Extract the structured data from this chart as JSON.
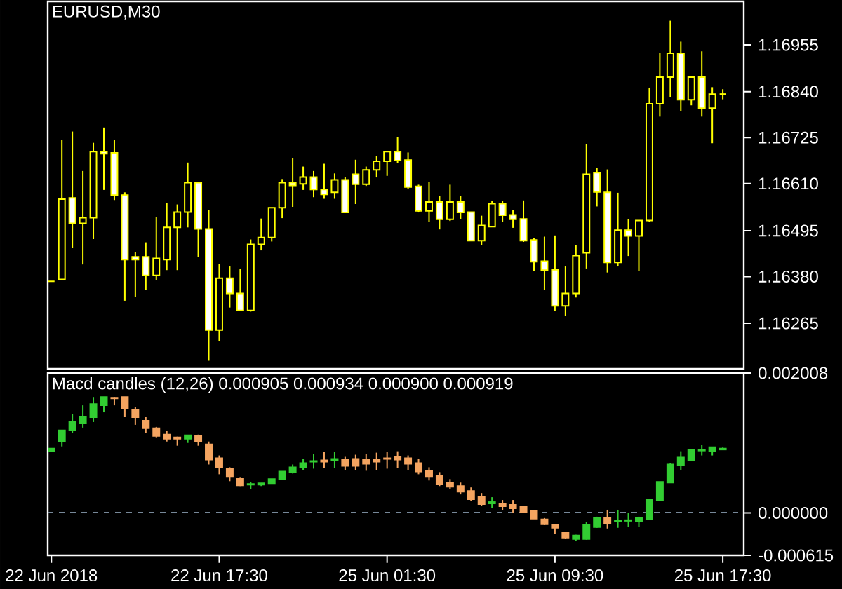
{
  "chart_data": [
    {
      "type": "candlestick",
      "title": "EURUSD,M30",
      "color": "#ffff00",
      "categories": [
        null,
        null,
        null,
        null,
        null,
        null,
        null,
        null,
        null,
        null,
        null,
        null,
        null,
        null,
        null,
        null,
        null,
        null,
        null,
        null,
        null,
        null,
        null,
        null,
        null,
        null,
        null,
        null,
        null,
        null,
        null,
        null,
        null,
        null,
        null,
        null,
        null,
        null,
        null,
        null,
        null,
        null,
        null,
        null,
        null,
        null,
        null,
        null,
        null,
        null,
        null,
        null,
        null,
        null,
        null,
        null,
        null,
        null,
        null,
        null,
        null,
        null,
        null,
        null,
        null
      ],
      "ylim": [
        1.16151,
        1.17064
      ],
      "yticks": [
        {
          "value": 1.16265,
          "label": "1.16265"
        },
        {
          "value": 1.1638,
          "label": "1.16380"
        },
        {
          "value": 1.16495,
          "label": "1.16495"
        },
        {
          "value": 1.1661,
          "label": "1.16610"
        },
        {
          "value": 1.16725,
          "label": "1.16725"
        },
        {
          "value": 1.1684,
          "label": "1.16840"
        },
        {
          "value": 1.16955,
          "label": "1.16955"
        }
      ],
      "ohlc": [
        [
          1.16368,
          1.16368,
          1.16368,
          1.16368
        ],
        [
          1.16373,
          1.16719,
          1.16373,
          1.16572
        ],
        [
          1.16575,
          1.1674,
          1.16452,
          1.16512
        ],
        [
          1.16512,
          1.16642,
          1.1641,
          1.16526
        ],
        [
          1.16526,
          1.16712,
          1.16473,
          1.1669
        ],
        [
          1.1669,
          1.1675,
          1.16595,
          1.16685
        ],
        [
          1.16687,
          1.16719,
          1.1657,
          1.16582
        ],
        [
          1.16582,
          1.16589,
          1.1632,
          1.16422
        ],
        [
          1.16429,
          1.1644,
          1.1633,
          1.16422
        ],
        [
          1.16429,
          1.16465,
          1.16347,
          1.16383
        ],
        [
          1.16383,
          1.16527,
          1.16372,
          1.16425
        ],
        [
          1.16422,
          1.16562,
          1.16396,
          1.16502
        ],
        [
          1.16502,
          1.16559,
          1.16396,
          1.1654
        ],
        [
          1.1654,
          1.16663,
          1.16502,
          1.16613
        ],
        [
          1.16613,
          1.16613,
          1.16428,
          1.16498
        ],
        [
          1.16498,
          1.16545,
          1.16171,
          1.16247
        ],
        [
          1.16247,
          1.16412,
          1.1622,
          1.16376
        ],
        [
          1.16376,
          1.16405,
          1.16303,
          1.16338
        ],
        [
          1.16338,
          1.16399,
          1.16296,
          1.16296
        ],
        [
          1.16296,
          1.16472,
          1.16293,
          1.1646
        ],
        [
          1.1646,
          1.16524,
          1.16445,
          1.16477
        ],
        [
          1.16477,
          1.16551,
          1.16467,
          1.16551
        ],
        [
          1.16551,
          1.16622,
          1.16525,
          1.16613
        ],
        [
          1.16613,
          1.16674,
          1.16553,
          1.16606
        ],
        [
          1.1661,
          1.16653,
          1.16595,
          1.16627
        ],
        [
          1.16627,
          1.16642,
          1.16577,
          1.16596
        ],
        [
          1.16596,
          1.1666,
          1.16573,
          1.16584
        ],
        [
          1.16589,
          1.16636,
          1.16573,
          1.1662
        ],
        [
          1.1662,
          1.16627,
          1.16539,
          1.16539
        ],
        [
          1.16634,
          1.1667,
          1.1656,
          1.16609
        ],
        [
          1.16609,
          1.16653,
          1.16605,
          1.16645
        ],
        [
          1.16645,
          1.1668,
          1.16626,
          1.16666
        ],
        [
          1.16666,
          1.1669,
          1.1663,
          1.1669
        ],
        [
          1.1669,
          1.16726,
          1.16661,
          1.16668
        ],
        [
          1.16669,
          1.16688,
          1.16598,
          1.16602
        ],
        [
          1.16604,
          1.16608,
          1.16539,
          1.16543
        ],
        [
          1.16543,
          1.16615,
          1.16515,
          1.16565
        ],
        [
          1.16565,
          1.1658,
          1.16497,
          1.16522
        ],
        [
          1.16522,
          1.16608,
          1.16518,
          1.16565
        ],
        [
          1.16565,
          1.1658,
          1.16522,
          1.16539
        ],
        [
          1.1654,
          1.1654,
          1.16469,
          1.16469
        ],
        [
          1.16469,
          1.16531,
          1.16459,
          1.16507
        ],
        [
          1.16504,
          1.16568,
          1.16504,
          1.16561
        ],
        [
          1.16561,
          1.16568,
          1.16515,
          1.16532
        ],
        [
          1.16533,
          1.16545,
          1.16501,
          1.16522
        ],
        [
          1.16523,
          1.16569,
          1.16466,
          1.16469
        ],
        [
          1.16471,
          1.16475,
          1.16393,
          1.16417
        ],
        [
          1.16418,
          1.16479,
          1.16347,
          1.16396
        ],
        [
          1.16397,
          1.16482,
          1.16295,
          1.16307
        ],
        [
          1.16307,
          1.16405,
          1.16282,
          1.16338
        ],
        [
          1.16338,
          1.16458,
          1.16328,
          1.16432
        ],
        [
          1.16439,
          1.16708,
          1.164,
          1.16634
        ],
        [
          1.16638,
          1.16649,
          1.16554,
          1.1659
        ],
        [
          1.16589,
          1.16646,
          1.1639,
          1.16415
        ],
        [
          1.16415,
          1.16588,
          1.16405,
          1.16495
        ],
        [
          1.16495,
          1.16522,
          1.16431,
          1.16481
        ],
        [
          1.16481,
          1.16519,
          1.16394,
          1.16519
        ],
        [
          1.16519,
          1.16849,
          1.16516,
          1.16809
        ],
        [
          1.16809,
          1.16935,
          1.16777,
          1.16875
        ],
        [
          1.16875,
          1.17015,
          1.16826,
          1.16934
        ],
        [
          1.16934,
          1.16963,
          1.16791,
          1.16819
        ],
        [
          1.16819,
          1.16875,
          1.16805,
          1.16875
        ],
        [
          1.16875,
          1.16939,
          1.16777,
          1.16798
        ],
        [
          1.16798,
          1.1685,
          1.16711,
          1.16833
        ],
        [
          1.16833,
          1.16845,
          1.1682,
          1.16833
        ]
      ]
    },
    {
      "type": "candlestick",
      "title": "Macd candles (12,26) 0.000905 0.000934 0.000900 0.000919",
      "categories": [
        "22 Jun 2018",
        null,
        null,
        null,
        null,
        null,
        null,
        null,
        null,
        null,
        null,
        null,
        null,
        null,
        null,
        null,
        "22 Jun 17:30",
        null,
        null,
        null,
        null,
        null,
        null,
        null,
        null,
        null,
        null,
        null,
        null,
        null,
        null,
        null,
        "25 Jun 01:30",
        null,
        null,
        null,
        null,
        null,
        null,
        null,
        null,
        null,
        null,
        null,
        null,
        null,
        null,
        null,
        "25 Jun 09:30",
        null,
        null,
        null,
        null,
        null,
        null,
        null,
        null,
        null,
        null,
        null,
        null,
        null,
        null,
        null,
        "25 Jun 17:30"
      ],
      "ylim": [
        -0.000615,
        0.002008
      ],
      "yticks": [
        -0.000615,
        {
          "value": 0,
          "label": "0.000000"
        },
        0.002008
      ],
      "ref_lines": [
        {
          "axis": "y",
          "value": 0,
          "color": "#778899",
          "line_style": "dashed"
        }
      ],
      "colors": [
        "#32cd32",
        "#32cd32",
        "#32cd32",
        "#32cd32",
        "#32cd32",
        "#32cd32",
        "#f4a460",
        "#f4a460",
        "#f4a460",
        "#f4a460",
        "#f4a460",
        "#f4a460",
        "#f4a460",
        "#32cd32",
        "#f4a460",
        "#f4a460",
        "#f4a460",
        "#f4a460",
        "#f4a460",
        "#32cd32",
        "#32cd32",
        "#32cd32",
        "#32cd32",
        "#32cd32",
        "#32cd32",
        "#32cd32",
        "#f4a460",
        "#32cd32",
        "#f4a460",
        "#f4a460",
        "#f4a460",
        "#f4a460",
        "#f4a460",
        "#f4a460",
        "#f4a460",
        "#f4a460",
        "#f4a460",
        "#f4a460",
        "#f4a460",
        "#f4a460",
        "#f4a460",
        "#f4a460",
        "#32cd32",
        "#f4a460",
        "#f4a460",
        "#f4a460",
        "#f4a460",
        "#f4a460",
        "#f4a460",
        "#f4a460",
        "#32cd32",
        "#32cd32",
        "#32cd32",
        "#f4a460",
        "#32cd32",
        "#32cd32",
        "#32cd32",
        "#32cd32",
        "#32cd32",
        "#32cd32",
        "#32cd32",
        "#32cd32",
        "#32cd32",
        "#32cd32",
        "#32cd32"
      ],
      "ohlc": [
        [
          0.00088,
          0.00092,
          0.00088,
          0.00092
        ],
        [
          0.00102,
          0.00118,
          0.00095,
          0.00118
        ],
        [
          0.00118,
          0.00142,
          0.00114,
          0.0013
        ],
        [
          0.00129,
          0.00154,
          0.00122,
          0.00138
        ],
        [
          0.00137,
          0.00166,
          0.0013,
          0.00156
        ],
        [
          0.00154,
          0.00166,
          0.00144,
          0.00166
        ],
        [
          0.00165,
          0.00166,
          0.00154,
          0.00164
        ],
        [
          0.00166,
          0.00166,
          0.00138,
          0.00149
        ],
        [
          0.00148,
          0.00152,
          0.00126,
          0.00137
        ],
        [
          0.00132,
          0.00137,
          0.00114,
          0.00121
        ],
        [
          0.00121,
          0.00123,
          0.00108,
          0.0011
        ],
        [
          0.00112,
          0.00117,
          0.00102,
          0.00106
        ],
        [
          0.00108,
          0.00109,
          0.00096,
          0.00106
        ],
        [
          0.00106,
          0.00111,
          0.001,
          0.00111
        ],
        [
          0.0011,
          0.00112,
          0.00096,
          0.00102
        ],
        [
          0.00098,
          0.00102,
          0.00069,
          0.00076
        ],
        [
          0.00078,
          0.00082,
          0.00055,
          0.00065
        ],
        [
          0.00063,
          0.00065,
          0.00045,
          0.00052
        ],
        [
          0.00049,
          0.00051,
          0.00038,
          0.00039
        ],
        [
          0.0004,
          0.00044,
          0.00034,
          0.00041
        ],
        [
          0.0004,
          0.00042,
          0.00038,
          0.00042
        ],
        [
          0.00042,
          0.00048,
          0.00042,
          0.00048
        ],
        [
          0.00048,
          0.00059,
          0.00048,
          0.00059
        ],
        [
          0.00058,
          0.00069,
          0.00056,
          0.00065
        ],
        [
          0.00065,
          0.00077,
          0.00061,
          0.00071
        ],
        [
          0.00073,
          0.00084,
          0.00063,
          0.00074
        ],
        [
          0.00075,
          0.00087,
          0.00064,
          0.00073
        ],
        [
          0.00075,
          0.00087,
          0.00064,
          0.00077
        ],
        [
          0.00076,
          0.0008,
          0.00061,
          0.00067
        ],
        [
          0.00077,
          0.00083,
          0.00061,
          0.00067
        ],
        [
          0.00076,
          0.00084,
          0.0006,
          0.0007
        ],
        [
          0.00076,
          0.00086,
          0.00061,
          0.00073
        ],
        [
          0.00078,
          0.00087,
          0.00063,
          0.00077
        ],
        [
          0.0008,
          0.00088,
          0.00064,
          0.00076
        ],
        [
          0.00078,
          0.00082,
          0.00061,
          0.0007
        ],
        [
          0.00071,
          0.00077,
          0.00055,
          0.00059
        ],
        [
          0.0006,
          0.00065,
          0.00046,
          0.00052
        ],
        [
          0.00053,
          0.00058,
          0.00038,
          0.00041
        ],
        [
          0.00043,
          0.00048,
          0.00034,
          0.00037
        ],
        [
          0.00038,
          0.00043,
          0.00026,
          0.0003
        ],
        [
          0.00031,
          0.00036,
          0.00017,
          0.00019
        ],
        [
          0.00022,
          0.00028,
          9e-05,
          0.00012
        ],
        [
          0.00013,
          0.00022,
          7e-05,
          0.00015
        ],
        [
          0.00013,
          0.00018,
          3e-05,
          9e-05
        ],
        [
          0.00011,
          0.00018,
          0.0,
          6e-05
        ],
        [
          9e-05,
          9e-05,
          1e-05,
          1e-05
        ],
        [
          3e-05,
          3e-05,
          -9e-05,
          -9e-05
        ],
        [
          -0.0001,
          -8e-05,
          -0.00018,
          -0.00017
        ],
        [
          -0.00018,
          -0.00018,
          -0.00031,
          -0.00022
        ],
        [
          -0.00029,
          -0.00028,
          -0.00038,
          -0.00036
        ],
        [
          -0.00038,
          -0.00032,
          -0.00041,
          -0.00033
        ],
        [
          -0.00038,
          -0.00014,
          -0.00039,
          -0.00018
        ],
        [
          -0.00021,
          -6e-05,
          -0.00022,
          -8e-05
        ],
        [
          -8e-05,
          4e-05,
          -0.00023,
          -0.00016
        ],
        [
          -0.00013,
          4e-05,
          -0.00022,
          -0.00012
        ],
        [
          -0.00012,
          -1e-05,
          -0.00021,
          -0.00011
        ],
        [
          -0.00013,
          -6e-05,
          -0.00021,
          -7e-05
        ],
        [
          -0.0001,
          0.0002,
          -0.00011,
          0.00018
        ],
        [
          0.00017,
          0.00044,
          0.00017,
          0.00044
        ],
        [
          0.00043,
          0.00071,
          0.00043,
          0.00069
        ],
        [
          0.00068,
          0.00088,
          0.00061,
          0.00079
        ],
        [
          0.00075,
          0.0009,
          0.00075,
          0.0009
        ],
        [
          0.00089,
          0.00097,
          0.00082,
          0.0009
        ],
        [
          0.00088,
          0.00094,
          0.00082,
          0.00094
        ],
        [
          0.000905,
          0.000934,
          0.0009,
          0.000919
        ]
      ]
    }
  ]
}
